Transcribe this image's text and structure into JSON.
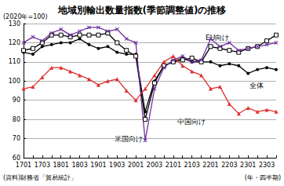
{
  "chart_data": {
    "type": "line",
    "title": "地域別輸出数量指数(季節調整値)の推移",
    "ylabel": "(2020年=100)",
    "xlabel": "(年・四半期)",
    "annotations": [
      "(資料)財務省「貿易統計」"
    ],
    "categories": [
      "1701",
      null,
      "1703",
      null,
      "1801",
      null,
      "1803",
      null,
      "1901",
      null,
      "1903",
      null,
      "2001",
      null,
      "2003",
      null,
      "2101",
      null,
      "2103",
      null,
      "2201",
      null,
      "2203",
      null,
      "2301",
      null,
      "2303",
      null
    ],
    "series": [
      {
        "name": "全体",
        "color": "#000000",
        "marker": "circle",
        "values": [
          115,
          114,
          118,
          119,
          120,
          120,
          122,
          119,
          117,
          118,
          115,
          114,
          114,
          84,
          100,
          108,
          110,
          112,
          110,
          110,
          110,
          108,
          109,
          108,
          104,
          106,
          107,
          106
        ]
      },
      {
        "name": "EU向け",
        "color": "#000000",
        "marker": "square",
        "values": [
          116,
          117,
          120,
          124,
          124,
          123,
          124,
          124,
          124,
          125,
          120,
          116,
          113,
          80,
          99,
          108,
          110,
          111,
          112,
          110,
          118,
          117,
          116,
          115,
          117,
          118,
          121,
          124
        ]
      },
      {
        "name": "米国向け",
        "color": "#7030a0",
        "marker": "x",
        "values": [
          120,
          123,
          121,
          125,
          127,
          124,
          126,
          128,
          128,
          126,
          127,
          122,
          120,
          69,
          96,
          107,
          111,
          113,
          110,
          111,
          122,
          118,
          120,
          116,
          117,
          118,
          119,
          120
        ]
      },
      {
        "name": "中国向け",
        "color": "#e03030",
        "marker": "triangle",
        "values": [
          96,
          97,
          102,
          107,
          107,
          105,
          103,
          101,
          98,
          100,
          101,
          95,
          90,
          96,
          103,
          110,
          113,
          108,
          105,
          103,
          96,
          97,
          88,
          83,
          86,
          84,
          85,
          84
        ]
      }
    ],
    "ylim": [
      60,
      130
    ],
    "yticks": [
      60,
      70,
      80,
      90,
      100,
      110,
      120,
      130
    ],
    "grid": true
  }
}
